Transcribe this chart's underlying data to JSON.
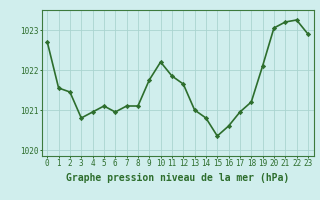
{
  "x": [
    0,
    1,
    2,
    3,
    4,
    5,
    6,
    7,
    8,
    9,
    10,
    11,
    12,
    13,
    14,
    15,
    16,
    17,
    18,
    19,
    20,
    21,
    22,
    23
  ],
  "y": [
    1022.7,
    1021.55,
    1021.45,
    1020.8,
    1020.95,
    1021.1,
    1020.95,
    1021.1,
    1021.1,
    1021.75,
    1022.2,
    1021.85,
    1021.65,
    1021.0,
    1020.8,
    1020.35,
    1020.6,
    1020.95,
    1021.2,
    1022.1,
    1023.05,
    1023.2,
    1023.25,
    1022.9
  ],
  "line_color": "#2d6e2d",
  "marker": "D",
  "marker_size": 2.2,
  "bg_color": "#d0eeed",
  "grid_color": "#aad4d0",
  "axis_color": "#2d6e2d",
  "border_color": "#3d7a3d",
  "xlabel": "Graphe pression niveau de la mer (hPa)",
  "xlabel_fontsize": 7.0,
  "ylim": [
    1019.85,
    1023.5
  ],
  "yticks": [
    1020,
    1021,
    1022,
    1023
  ],
  "xticks": [
    0,
    1,
    2,
    3,
    4,
    5,
    6,
    7,
    8,
    9,
    10,
    11,
    12,
    13,
    14,
    15,
    16,
    17,
    18,
    19,
    20,
    21,
    22,
    23
  ],
  "tick_fontsize": 5.5,
  "linewidth": 1.2
}
